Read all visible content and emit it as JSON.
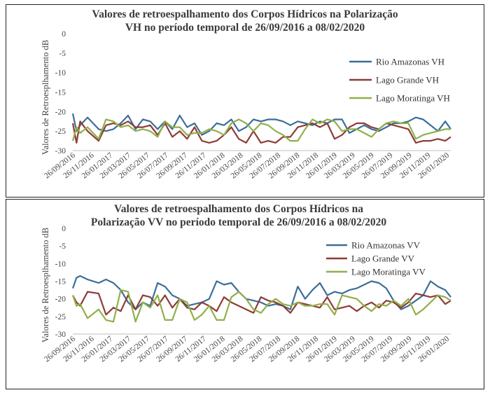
{
  "chart_data": [
    {
      "type": "line",
      "title_line1": "Valores de retroespalhamento dos Corpos Hídricos na Polarização",
      "title_line2": "VH no período temporal de 26/09/2016 a 08/02/2020",
      "ylabel": "Valores de Retroesplhamento dB",
      "xlabel": "",
      "ylim": [
        -30,
        0
      ],
      "yticks": [
        0,
        -5,
        -10,
        -15,
        -20,
        -25,
        -30
      ],
      "xlim": [
        "2016-09-26",
        "2020-02-08"
      ],
      "xticks": [
        "26/09/2016",
        "26/11/2016",
        "26/01/2017",
        "26/03/2017",
        "26/05/2017",
        "26/07/2017",
        "26/09/2017",
        "26/11/2017",
        "26/01/2018",
        "26/03/2018",
        "26/05/2018",
        "26/07/2018",
        "26/09/2018",
        "26/11/2018",
        "26/01/2019",
        "26/03/2019",
        "26/05/2019",
        "26/07/2019",
        "26/09/2019",
        "26/11/2019",
        "26/01/2020"
      ],
      "grid": false,
      "legend_position": "right",
      "series": [
        {
          "name": "Rio Amazonas VH",
          "color": "#3b6e99",
          "x": [
            "2016-09-26",
            "2016-10-08",
            "2016-10-20",
            "2016-11-13",
            "2016-12-19",
            "2017-01-12",
            "2017-02-05",
            "2017-03-01",
            "2017-03-25",
            "2017-04-18",
            "2017-05-12",
            "2017-06-05",
            "2017-06-29",
            "2017-07-23",
            "2017-08-16",
            "2017-09-09",
            "2017-10-03",
            "2017-10-27",
            "2017-11-20",
            "2017-12-14",
            "2018-01-07",
            "2018-01-31",
            "2018-02-24",
            "2018-03-20",
            "2018-04-13",
            "2018-05-07",
            "2018-05-31",
            "2018-06-24",
            "2018-07-18",
            "2018-08-11",
            "2018-09-04",
            "2018-09-28",
            "2018-10-22",
            "2018-11-15",
            "2018-12-09",
            "2019-01-02",
            "2019-01-26",
            "2019-02-19",
            "2019-03-15",
            "2019-04-08",
            "2019-05-02",
            "2019-05-26",
            "2019-06-19",
            "2019-07-13",
            "2019-08-06",
            "2019-08-30",
            "2019-09-23",
            "2019-10-17",
            "2019-11-10",
            "2019-12-04",
            "2019-12-28",
            "2020-01-21",
            "2020-02-08"
          ],
          "values": [
            -20.5,
            -25,
            -23.5,
            -21.5,
            -24.5,
            -25,
            -24.5,
            -23,
            -21,
            -24.5,
            -22,
            -22.5,
            -24.5,
            -22.5,
            -24.5,
            -21,
            -24,
            -23,
            -26,
            -25,
            -23,
            -23.5,
            -22,
            -25,
            -24,
            -22,
            -22.5,
            -22,
            -22,
            -22.5,
            -23.5,
            -22.5,
            -23,
            -23.5,
            -22.5,
            -23,
            -22,
            -22,
            -25.5,
            -24.5,
            -23.5,
            -24.5,
            -25,
            -24,
            -23,
            -23,
            -22.5,
            -21.5,
            -22,
            -23.5,
            -25,
            -22.5,
            -24.5
          ]
        },
        {
          "name": "Lago Grande VH",
          "color": "#8e3b35",
          "x": [
            "2016-09-26",
            "2016-10-08",
            "2016-10-20",
            "2016-11-13",
            "2016-12-19",
            "2017-01-12",
            "2017-02-05",
            "2017-03-01",
            "2017-03-25",
            "2017-04-18",
            "2017-05-12",
            "2017-06-05",
            "2017-06-29",
            "2017-07-23",
            "2017-08-16",
            "2017-09-09",
            "2017-10-03",
            "2017-10-27",
            "2017-11-20",
            "2017-12-14",
            "2018-01-07",
            "2018-01-31",
            "2018-02-24",
            "2018-03-20",
            "2018-04-13",
            "2018-05-07",
            "2018-05-31",
            "2018-06-24",
            "2018-07-18",
            "2018-08-11",
            "2018-09-04",
            "2018-09-28",
            "2018-10-22",
            "2018-11-15",
            "2018-12-09",
            "2019-01-02",
            "2019-01-26",
            "2019-02-19",
            "2019-03-15",
            "2019-04-08",
            "2019-05-02",
            "2019-05-26",
            "2019-06-19",
            "2019-07-13",
            "2019-08-06",
            "2019-08-30",
            "2019-09-23",
            "2019-10-17",
            "2019-11-10",
            "2019-12-04",
            "2019-12-28",
            "2020-01-21",
            "2020-02-08"
          ],
          "values": [
            -23,
            -28,
            -22.5,
            -25,
            -27.5,
            -23.5,
            -23,
            -23.5,
            -22.5,
            -24,
            -24,
            -23.5,
            -26,
            -23,
            -26.5,
            -25,
            -27,
            -24,
            -27.5,
            -28,
            -27.5,
            -26,
            -24,
            -27,
            -28,
            -25,
            -28,
            -27.5,
            -28,
            -26.5,
            -26.5,
            -24,
            -23.5,
            -23,
            -24,
            -23,
            -27,
            -26,
            -24,
            -23,
            -23,
            -24,
            -24.5,
            -23,
            -23.5,
            -24,
            -24.5,
            -28,
            -27.5,
            -27.5,
            -27,
            -27.5,
            -26.5
          ]
        },
        {
          "name": "Lago Moratinga VH",
          "color": "#8fb04a",
          "x": [
            "2016-09-26",
            "2016-10-08",
            "2016-10-20",
            "2016-11-13",
            "2016-12-19",
            "2017-01-12",
            "2017-02-05",
            "2017-03-01",
            "2017-03-25",
            "2017-04-18",
            "2017-05-12",
            "2017-06-05",
            "2017-06-29",
            "2017-07-23",
            "2017-08-16",
            "2017-09-09",
            "2017-10-03",
            "2017-10-27",
            "2017-11-20",
            "2017-12-14",
            "2018-01-07",
            "2018-01-31",
            "2018-02-24",
            "2018-03-20",
            "2018-04-13",
            "2018-05-07",
            "2018-05-31",
            "2018-06-24",
            "2018-07-18",
            "2018-08-11",
            "2018-09-04",
            "2018-09-28",
            "2018-10-22",
            "2018-11-15",
            "2018-12-09",
            "2019-01-02",
            "2019-01-26",
            "2019-02-19",
            "2019-03-15",
            "2019-04-08",
            "2019-05-02",
            "2019-05-26",
            "2019-06-19",
            "2019-07-13",
            "2019-08-06",
            "2019-08-30",
            "2019-09-23",
            "2019-10-17",
            "2019-11-10",
            "2019-12-04",
            "2019-12-28",
            "2020-01-21",
            "2020-02-08"
          ],
          "values": [
            -27.5,
            -24,
            -25.5,
            -24,
            -27,
            -22,
            -22.5,
            -24,
            -23.5,
            -25,
            -24.5,
            -25,
            -26.5,
            -22.5,
            -24,
            -24,
            -26,
            -25.5,
            -25.5,
            -24.5,
            -25,
            -26,
            -23,
            -22,
            -23,
            -25,
            -23,
            -23.5,
            -25,
            -26,
            -27.5,
            -27.5,
            -24.5,
            -22,
            -23,
            -22,
            -22.5,
            -25,
            -24.5,
            -24.5,
            -25.5,
            -26.5,
            -24.5,
            -23,
            -22.5,
            -23,
            -23,
            -27,
            -26,
            -25.5,
            -25,
            -24.5,
            -24.5
          ]
        }
      ]
    },
    {
      "type": "line",
      "title_line1": "Valores de retroespalhamento dos Corpos Hídricos na",
      "title_line2": "Polarização VV no período temporal de 26/09/2016 a 08/02/2020",
      "ylabel": "Valores de Retroesplhamento dB",
      "xlabel": "",
      "ylim": [
        -30,
        0
      ],
      "yticks": [
        0,
        -5,
        -10,
        -15,
        -20,
        -25,
        -30
      ],
      "xlim": [
        "2016-09-26",
        "2020-02-08"
      ],
      "xticks": [
        "26/09/2016",
        "26/11/2016",
        "26/01/2017",
        "26/03/2017",
        "26/05/2017",
        "26/07/2017",
        "26/09/2017",
        "26/11/2017",
        "26/01/2018",
        "26/03/2018",
        "26/05/2018",
        "26/07/2018",
        "26/09/2018",
        "26/11/2018",
        "26/01/2019",
        "26/03/2019",
        "26/05/2019",
        "26/07/2019",
        "26/09/2019",
        "26/11/2019",
        "26/01/2020"
      ],
      "grid": false,
      "legend_position": "right",
      "series": [
        {
          "name": "Rio Amazonas VV",
          "color": "#3b6e99",
          "x": [
            "2016-09-26",
            "2016-10-08",
            "2016-10-20",
            "2016-11-13",
            "2016-12-19",
            "2017-01-12",
            "2017-02-05",
            "2017-03-01",
            "2017-03-25",
            "2017-04-18",
            "2017-05-12",
            "2017-06-05",
            "2017-06-29",
            "2017-07-23",
            "2017-08-16",
            "2017-09-09",
            "2017-10-03",
            "2017-10-27",
            "2017-11-20",
            "2017-12-14",
            "2018-01-07",
            "2018-01-31",
            "2018-02-24",
            "2018-03-20",
            "2018-04-13",
            "2018-05-07",
            "2018-05-31",
            "2018-06-24",
            "2018-07-18",
            "2018-08-11",
            "2018-09-04",
            "2018-09-28",
            "2018-10-22",
            "2018-11-15",
            "2018-12-09",
            "2019-01-02",
            "2019-01-26",
            "2019-02-19",
            "2019-03-15",
            "2019-04-08",
            "2019-05-02",
            "2019-05-26",
            "2019-06-19",
            "2019-07-13",
            "2019-08-06",
            "2019-08-30",
            "2019-09-23",
            "2019-10-17",
            "2019-11-10",
            "2019-12-04",
            "2019-12-28",
            "2020-01-21",
            "2020-02-08"
          ],
          "values": [
            -17,
            -14,
            -13.5,
            -14.5,
            -15.5,
            -14.5,
            -15.5,
            -17.5,
            -21,
            -23,
            -21,
            -22,
            -15.5,
            -16.5,
            -19,
            -20,
            -22,
            -21.5,
            -21,
            -20,
            -15,
            -16,
            -15.5,
            -18,
            -20,
            -20.5,
            -21,
            -22,
            -21.5,
            -22,
            -23,
            -16.5,
            -20,
            -17.5,
            -15.5,
            -19,
            -18,
            -18.5,
            -17.5,
            -17,
            -16,
            -15,
            -15.5,
            -17,
            -20.5,
            -23,
            -22,
            -20.5,
            -19,
            -15,
            -16.5,
            -17.5,
            -19.5
          ]
        },
        {
          "name": "Lago Grande VV",
          "color": "#8e3b35",
          "x": [
            "2016-09-26",
            "2016-10-08",
            "2016-10-20",
            "2016-11-13",
            "2016-12-19",
            "2017-01-12",
            "2017-02-05",
            "2017-03-01",
            "2017-03-25",
            "2017-04-18",
            "2017-05-12",
            "2017-06-05",
            "2017-06-29",
            "2017-07-23",
            "2017-08-16",
            "2017-09-09",
            "2017-10-03",
            "2017-10-27",
            "2017-11-20",
            "2017-12-14",
            "2018-01-07",
            "2018-01-31",
            "2018-02-24",
            "2018-03-20",
            "2018-04-13",
            "2018-05-07",
            "2018-05-31",
            "2018-06-24",
            "2018-07-18",
            "2018-08-11",
            "2018-09-04",
            "2018-09-28",
            "2018-10-22",
            "2018-11-15",
            "2018-12-09",
            "2019-01-02",
            "2019-01-26",
            "2019-02-19",
            "2019-03-15",
            "2019-04-08",
            "2019-05-02",
            "2019-05-26",
            "2019-06-19",
            "2019-07-13",
            "2019-08-06",
            "2019-08-30",
            "2019-09-23",
            "2019-10-17",
            "2019-11-10",
            "2019-12-04",
            "2019-12-28",
            "2020-01-21",
            "2020-02-08"
          ],
          "values": [
            -19,
            -21,
            -22,
            -18,
            -18.5,
            -24.5,
            -22.5,
            -23.5,
            -19,
            -23,
            -19,
            -19.5,
            -22,
            -19,
            -22.5,
            -20,
            -22.5,
            -23,
            -21,
            -22,
            -23.5,
            -19.5,
            -21,
            -22,
            -23,
            -24,
            -19.5,
            -20.5,
            -21,
            -22,
            -24,
            -21,
            -21.5,
            -22,
            -22.5,
            -19.5,
            -23,
            -22.5,
            -22,
            -23.5,
            -22,
            -21,
            -22.5,
            -20.5,
            -21,
            -22.5,
            -21,
            -18.5,
            -19,
            -19.5,
            -19,
            -21.5,
            -20.5
          ]
        },
        {
          "name": "Lago Moratinga VV",
          "color": "#8fb04a",
          "x": [
            "2016-09-26",
            "2016-10-08",
            "2016-10-20",
            "2016-11-13",
            "2016-12-19",
            "2017-01-12",
            "2017-02-05",
            "2017-03-01",
            "2017-03-25",
            "2017-04-18",
            "2017-05-12",
            "2017-06-05",
            "2017-06-29",
            "2017-07-23",
            "2017-08-16",
            "2017-09-09",
            "2017-10-03",
            "2017-10-27",
            "2017-11-20",
            "2017-12-14",
            "2018-01-07",
            "2018-01-31",
            "2018-02-24",
            "2018-03-20",
            "2018-04-13",
            "2018-05-07",
            "2018-05-31",
            "2018-06-24",
            "2018-07-18",
            "2018-08-11",
            "2018-09-04",
            "2018-09-28",
            "2018-10-22",
            "2018-11-15",
            "2018-12-09",
            "2019-01-02",
            "2019-01-26",
            "2019-02-19",
            "2019-03-15",
            "2019-04-08",
            "2019-05-02",
            "2019-05-26",
            "2019-06-19",
            "2019-07-13",
            "2019-08-06",
            "2019-08-30",
            "2019-09-23",
            "2019-10-17",
            "2019-11-10",
            "2019-12-04",
            "2019-12-28",
            "2020-01-21",
            "2020-02-08"
          ],
          "values": [
            -19,
            -22,
            -21.5,
            -25.5,
            -23,
            -26,
            -26.5,
            -17.5,
            -18,
            -26.5,
            -21,
            -22.5,
            -19,
            -26,
            -26,
            -20,
            -21,
            -26,
            -24.5,
            -22,
            -26,
            -26,
            -19.5,
            -18,
            -20,
            -23,
            -24,
            -21.5,
            -20,
            -21.5,
            -22,
            -21,
            -22,
            -22,
            -21.5,
            -21.5,
            -24.5,
            -19,
            -19.5,
            -20,
            -22,
            -23.5,
            -21.5,
            -22,
            -20.5,
            -22,
            -20,
            -24.5,
            -23,
            -21,
            -19,
            -19.5,
            -20.5
          ]
        }
      ]
    }
  ]
}
